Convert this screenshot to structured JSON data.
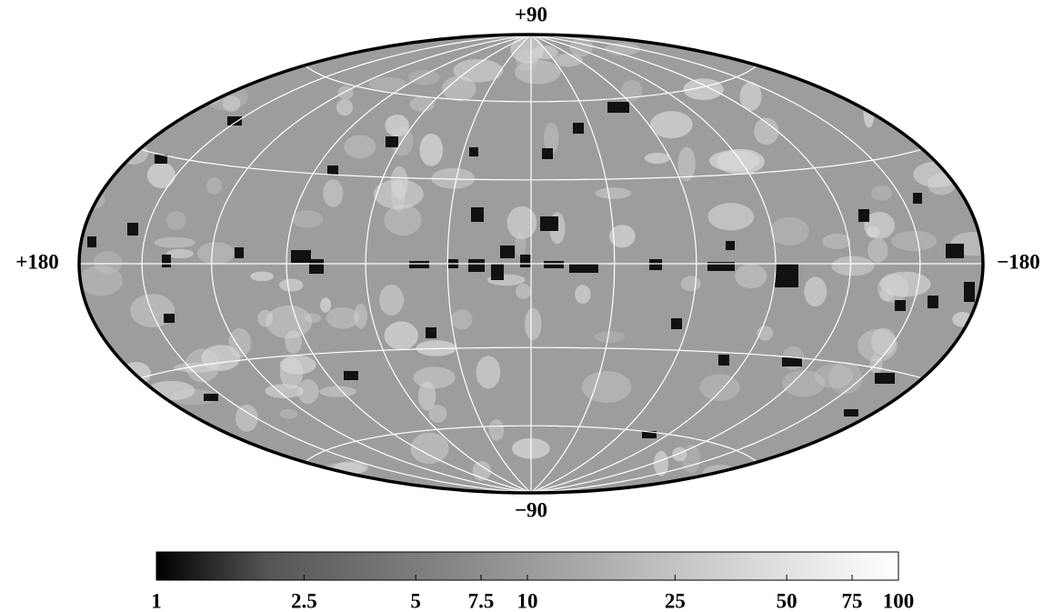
{
  "map": {
    "labels": {
      "top": "+90",
      "bottom": "−90",
      "left": "+180",
      "right": "−180"
    }
  },
  "colorbar": {
    "scale": "log",
    "lim": [
      1,
      100
    ],
    "ticks": [
      1,
      2.5,
      5,
      7.5,
      10,
      25,
      50,
      75,
      100
    ]
  }
}
